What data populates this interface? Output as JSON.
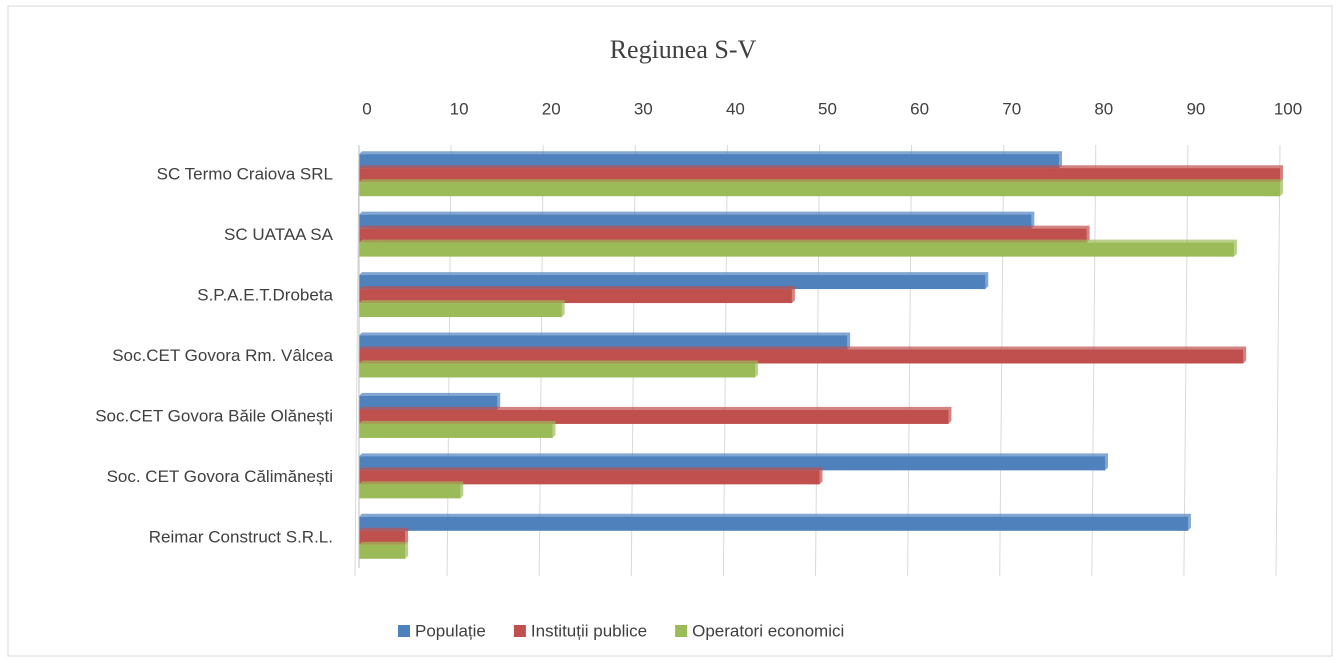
{
  "chart_data": {
    "type": "bar",
    "orientation": "horizontal",
    "title": "Regiunea S-V",
    "categories": [
      "SC Termo Craiova SRL",
      "SC UATAA SA",
      "S.P.A.E.T.Drobeta",
      "Soc.CET Govora Rm. Vâlcea",
      "Soc.CET Govora Băile Olănești",
      "Soc. CET Govora Călimănești",
      "Reimar Construct S.R.L."
    ],
    "series": [
      {
        "name": "Populație",
        "color": "#4f81bd",
        "values": [
          76,
          73,
          68,
          53,
          15,
          81,
          90
        ]
      },
      {
        "name": "Instituții publice",
        "color": "#c0504d",
        "values": [
          100,
          79,
          47,
          96,
          64,
          50,
          5
        ]
      },
      {
        "name": "Operatori economici",
        "color": "#9bbb59",
        "values": [
          100,
          95,
          22,
          43,
          21,
          11,
          5
        ]
      }
    ],
    "xlim": [
      0,
      100
    ],
    "xticks": [
      0,
      10,
      20,
      30,
      40,
      50,
      60,
      70,
      80,
      90,
      100
    ],
    "grid": true,
    "legend": "bottom"
  }
}
